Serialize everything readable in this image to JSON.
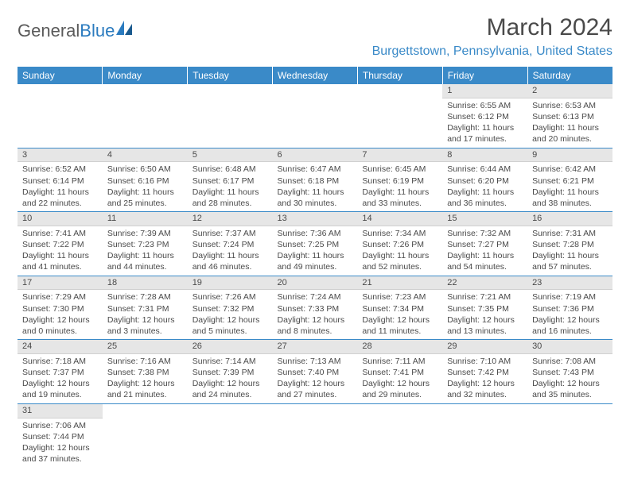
{
  "logo": {
    "text_a": "General",
    "text_b": "Blue"
  },
  "title": "March 2024",
  "location": "Burgettstown, Pennsylvania, United States",
  "colors": {
    "header_bg": "#3a8ac8",
    "header_fg": "#ffffff",
    "daynum_bg": "#e6e6e6",
    "row_border": "#3a8ac8",
    "text": "#4a4a4a",
    "location": "#3a8ac8"
  },
  "day_labels": [
    "Sunday",
    "Monday",
    "Tuesday",
    "Wednesday",
    "Thursday",
    "Friday",
    "Saturday"
  ],
  "weeks": [
    [
      null,
      null,
      null,
      null,
      null,
      {
        "d": "1",
        "sr": "6:55 AM",
        "ss": "6:12 PM",
        "dl": "11 hours and 17 minutes."
      },
      {
        "d": "2",
        "sr": "6:53 AM",
        "ss": "6:13 PM",
        "dl": "11 hours and 20 minutes."
      }
    ],
    [
      {
        "d": "3",
        "sr": "6:52 AM",
        "ss": "6:14 PM",
        "dl": "11 hours and 22 minutes."
      },
      {
        "d": "4",
        "sr": "6:50 AM",
        "ss": "6:16 PM",
        "dl": "11 hours and 25 minutes."
      },
      {
        "d": "5",
        "sr": "6:48 AM",
        "ss": "6:17 PM",
        "dl": "11 hours and 28 minutes."
      },
      {
        "d": "6",
        "sr": "6:47 AM",
        "ss": "6:18 PM",
        "dl": "11 hours and 30 minutes."
      },
      {
        "d": "7",
        "sr": "6:45 AM",
        "ss": "6:19 PM",
        "dl": "11 hours and 33 minutes."
      },
      {
        "d": "8",
        "sr": "6:44 AM",
        "ss": "6:20 PM",
        "dl": "11 hours and 36 minutes."
      },
      {
        "d": "9",
        "sr": "6:42 AM",
        "ss": "6:21 PM",
        "dl": "11 hours and 38 minutes."
      }
    ],
    [
      {
        "d": "10",
        "sr": "7:41 AM",
        "ss": "7:22 PM",
        "dl": "11 hours and 41 minutes."
      },
      {
        "d": "11",
        "sr": "7:39 AM",
        "ss": "7:23 PM",
        "dl": "11 hours and 44 minutes."
      },
      {
        "d": "12",
        "sr": "7:37 AM",
        "ss": "7:24 PM",
        "dl": "11 hours and 46 minutes."
      },
      {
        "d": "13",
        "sr": "7:36 AM",
        "ss": "7:25 PM",
        "dl": "11 hours and 49 minutes."
      },
      {
        "d": "14",
        "sr": "7:34 AM",
        "ss": "7:26 PM",
        "dl": "11 hours and 52 minutes."
      },
      {
        "d": "15",
        "sr": "7:32 AM",
        "ss": "7:27 PM",
        "dl": "11 hours and 54 minutes."
      },
      {
        "d": "16",
        "sr": "7:31 AM",
        "ss": "7:28 PM",
        "dl": "11 hours and 57 minutes."
      }
    ],
    [
      {
        "d": "17",
        "sr": "7:29 AM",
        "ss": "7:30 PM",
        "dl": "12 hours and 0 minutes."
      },
      {
        "d": "18",
        "sr": "7:28 AM",
        "ss": "7:31 PM",
        "dl": "12 hours and 3 minutes."
      },
      {
        "d": "19",
        "sr": "7:26 AM",
        "ss": "7:32 PM",
        "dl": "12 hours and 5 minutes."
      },
      {
        "d": "20",
        "sr": "7:24 AM",
        "ss": "7:33 PM",
        "dl": "12 hours and 8 minutes."
      },
      {
        "d": "21",
        "sr": "7:23 AM",
        "ss": "7:34 PM",
        "dl": "12 hours and 11 minutes."
      },
      {
        "d": "22",
        "sr": "7:21 AM",
        "ss": "7:35 PM",
        "dl": "12 hours and 13 minutes."
      },
      {
        "d": "23",
        "sr": "7:19 AM",
        "ss": "7:36 PM",
        "dl": "12 hours and 16 minutes."
      }
    ],
    [
      {
        "d": "24",
        "sr": "7:18 AM",
        "ss": "7:37 PM",
        "dl": "12 hours and 19 minutes."
      },
      {
        "d": "25",
        "sr": "7:16 AM",
        "ss": "7:38 PM",
        "dl": "12 hours and 21 minutes."
      },
      {
        "d": "26",
        "sr": "7:14 AM",
        "ss": "7:39 PM",
        "dl": "12 hours and 24 minutes."
      },
      {
        "d": "27",
        "sr": "7:13 AM",
        "ss": "7:40 PM",
        "dl": "12 hours and 27 minutes."
      },
      {
        "d": "28",
        "sr": "7:11 AM",
        "ss": "7:41 PM",
        "dl": "12 hours and 29 minutes."
      },
      {
        "d": "29",
        "sr": "7:10 AM",
        "ss": "7:42 PM",
        "dl": "12 hours and 32 minutes."
      },
      {
        "d": "30",
        "sr": "7:08 AM",
        "ss": "7:43 PM",
        "dl": "12 hours and 35 minutes."
      }
    ],
    [
      {
        "d": "31",
        "sr": "7:06 AM",
        "ss": "7:44 PM",
        "dl": "12 hours and 37 minutes."
      },
      null,
      null,
      null,
      null,
      null,
      null
    ]
  ],
  "labels": {
    "sunrise": "Sunrise: ",
    "sunset": "Sunset: ",
    "daylight": "Daylight: "
  }
}
